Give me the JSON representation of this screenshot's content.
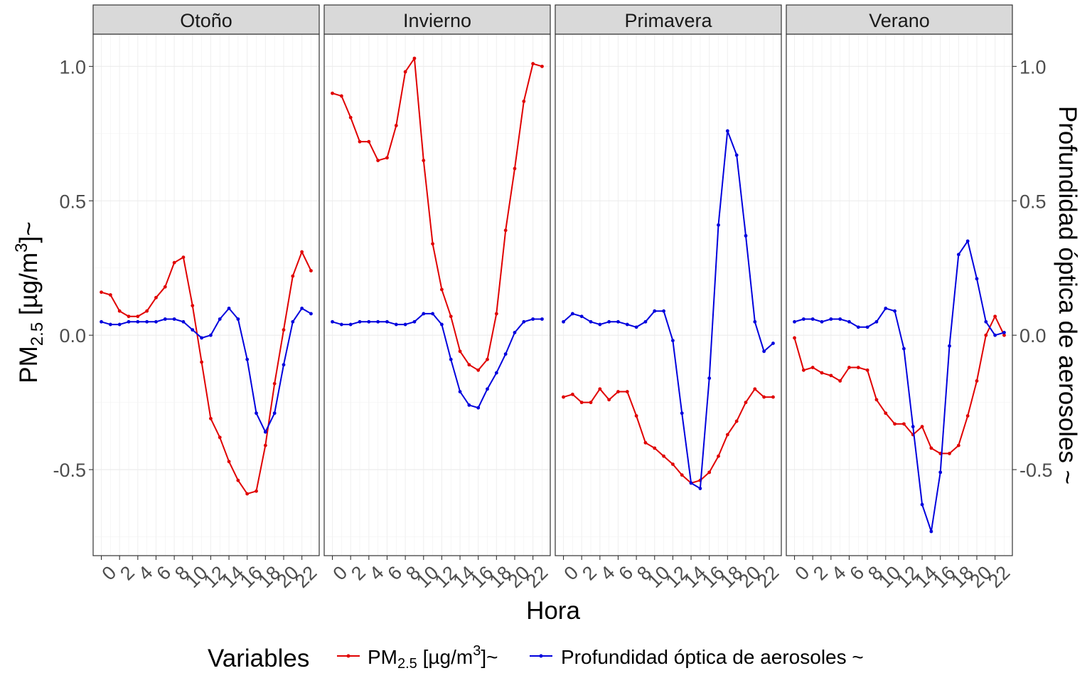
{
  "chart_data": {
    "type": "line",
    "xlabel": "Hora",
    "ylabel_left": "PM2.5 [µg/m3]~",
    "ylabel_left_parts": {
      "base": "PM",
      "sub": "2.5",
      "unit": " [µg/m",
      "sup": "3",
      "tail": "]~"
    },
    "ylabel_right": "Profundidad óptica de aerosoles ~",
    "ylim": [
      -0.82,
      1.12
    ],
    "yticks": [
      -0.5,
      0.0,
      0.5,
      1.0
    ],
    "ytick_labels": [
      "-0.5",
      "0.0",
      "0.5",
      "1.0"
    ],
    "xlim": [
      -0.9,
      23.9
    ],
    "xticks": [
      0,
      2,
      4,
      6,
      8,
      10,
      12,
      14,
      16,
      18,
      20,
      22
    ],
    "xtick_labels": [
      "0",
      "2",
      "4",
      "6",
      "8",
      "10",
      "12",
      "14",
      "16",
      "18",
      "20",
      "22"
    ],
    "grid": true,
    "legend": {
      "title": "Variables",
      "placement": "bottom",
      "pm_label": {
        "base": "PM",
        "sub": "2.5",
        "unit": " [µg/m",
        "sup": "3",
        "tail": "]~"
      },
      "aod_label": "Profundidad óptica de aerosoles ~"
    },
    "colors": {
      "pm25": "#e00000",
      "aod": "#0000dd"
    },
    "hours": [
      0,
      1,
      2,
      3,
      4,
      5,
      6,
      7,
      8,
      9,
      10,
      11,
      12,
      13,
      14,
      15,
      16,
      17,
      18,
      19,
      20,
      21,
      22,
      23
    ],
    "panels": [
      {
        "label": "Otoño",
        "series": [
          {
            "key": "pm25",
            "values": [
              0.16,
              0.15,
              0.09,
              0.07,
              0.07,
              0.09,
              0.14,
              0.18,
              0.27,
              0.29,
              0.11,
              -0.1,
              -0.31,
              -0.38,
              -0.47,
              -0.54,
              -0.59,
              -0.58,
              -0.41,
              -0.18,
              0.02,
              0.22,
              0.31,
              0.24
            ]
          },
          {
            "key": "aod",
            "values": [
              0.05,
              0.04,
              0.04,
              0.05,
              0.05,
              0.05,
              0.05,
              0.06,
              0.06,
              0.05,
              0.02,
              -0.01,
              0.0,
              0.06,
              0.1,
              0.06,
              -0.09,
              -0.29,
              -0.36,
              -0.29,
              -0.11,
              0.05,
              0.1,
              0.08
            ]
          }
        ]
      },
      {
        "label": "Invierno",
        "series": [
          {
            "key": "pm25",
            "values": [
              0.9,
              0.89,
              0.81,
              0.72,
              0.72,
              0.65,
              0.66,
              0.78,
              0.98,
              1.03,
              0.65,
              0.34,
              0.17,
              0.07,
              -0.06,
              -0.11,
              -0.13,
              -0.09,
              0.08,
              0.39,
              0.62,
              0.87,
              1.01,
              1.0
            ]
          },
          {
            "key": "aod",
            "values": [
              0.05,
              0.04,
              0.04,
              0.05,
              0.05,
              0.05,
              0.05,
              0.04,
              0.04,
              0.05,
              0.08,
              0.08,
              0.04,
              -0.09,
              -0.21,
              -0.26,
              -0.27,
              -0.2,
              -0.14,
              -0.07,
              0.01,
              0.05,
              0.06,
              0.06
            ]
          }
        ]
      },
      {
        "label": "Primavera",
        "series": [
          {
            "key": "pm25",
            "values": [
              -0.23,
              -0.22,
              -0.25,
              -0.25,
              -0.2,
              -0.24,
              -0.21,
              -0.21,
              -0.3,
              -0.4,
              -0.42,
              -0.45,
              -0.48,
              -0.52,
              -0.55,
              -0.54,
              -0.51,
              -0.45,
              -0.37,
              -0.32,
              -0.25,
              -0.2,
              -0.23,
              -0.23
            ]
          },
          {
            "key": "aod",
            "values": [
              0.05,
              0.08,
              0.07,
              0.05,
              0.04,
              0.05,
              0.05,
              0.04,
              0.03,
              0.05,
              0.09,
              0.09,
              -0.02,
              -0.29,
              -0.55,
              -0.57,
              -0.16,
              0.41,
              0.76,
              0.67,
              0.37,
              0.05,
              -0.06,
              -0.03
            ]
          }
        ]
      },
      {
        "label": "Verano",
        "series": [
          {
            "key": "pm25",
            "values": [
              -0.01,
              -0.13,
              -0.12,
              -0.14,
              -0.15,
              -0.17,
              -0.12,
              -0.12,
              -0.13,
              -0.24,
              -0.29,
              -0.33,
              -0.33,
              -0.37,
              -0.34,
              -0.42,
              -0.44,
              -0.44,
              -0.41,
              -0.3,
              -0.17,
              0.0,
              0.07,
              -0.0
            ]
          },
          {
            "key": "aod",
            "values": [
              0.05,
              0.06,
              0.06,
              0.05,
              0.06,
              0.06,
              0.05,
              0.03,
              0.03,
              0.05,
              0.1,
              0.09,
              -0.05,
              -0.34,
              -0.63,
              -0.73,
              -0.51,
              -0.04,
              0.3,
              0.35,
              0.21,
              0.05,
              0.0,
              0.01
            ]
          }
        ]
      }
    ]
  }
}
